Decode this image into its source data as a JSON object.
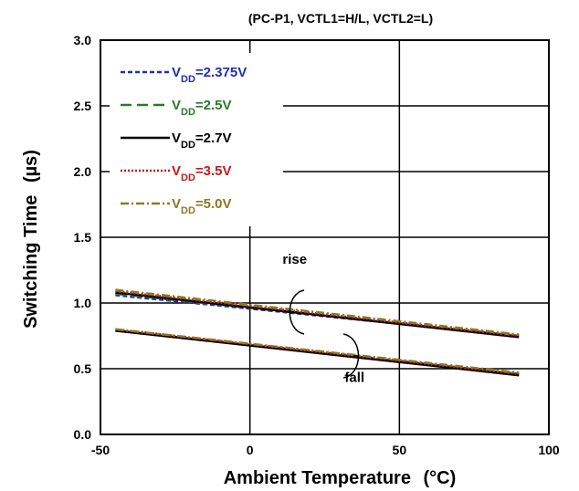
{
  "chart_data": {
    "type": "line",
    "title": "(PC-P1, VCTL1=H/L, VCTL2=L)",
    "xlabel": "Ambient Temperature",
    "xlabel_unit": "(°C)",
    "ylabel": "Switching Time",
    "ylabel_unit": "(µs)",
    "xlim": [
      -50,
      100
    ],
    "ylim": [
      0,
      3
    ],
    "xticks": [
      -50,
      0,
      50,
      100
    ],
    "yticks": [
      0.0,
      0.5,
      1.0,
      1.5,
      2.0,
      2.5,
      3.0
    ],
    "grid": true,
    "legend_position": "top-left",
    "series": [
      {
        "name": "VDD=2.375V",
        "label_main": "V",
        "label_sub": "DD",
        "label_rest": "=2.375V",
        "color": "#1f2fb5",
        "dash": "5,3",
        "rise": {
          "x": [
            -45,
            90
          ],
          "y": [
            1.06,
            0.75
          ]
        },
        "fall": {
          "x": [
            -45,
            90
          ],
          "y": [
            0.79,
            0.46
          ]
        }
      },
      {
        "name": "VDD=2.5V",
        "label_main": "V",
        "label_sub": "DD",
        "label_rest": "=2.5V",
        "color": "#2a7a2a",
        "dash": "12,6",
        "rise": {
          "x": [
            -45,
            90
          ],
          "y": [
            1.07,
            0.75
          ]
        },
        "fall": {
          "x": [
            -45,
            90
          ],
          "y": [
            0.79,
            0.46
          ]
        }
      },
      {
        "name": "VDD=2.7V",
        "label_main": "V",
        "label_sub": "DD",
        "label_rest": "=2.7V",
        "color": "#000000",
        "dash": "",
        "rise": {
          "x": [
            -45,
            90
          ],
          "y": [
            1.08,
            0.74
          ]
        },
        "fall": {
          "x": [
            -45,
            90
          ],
          "y": [
            0.79,
            0.45
          ]
        }
      },
      {
        "name": "VDD=3.5V",
        "label_main": "V",
        "label_sub": "DD",
        "label_rest": "=3.5V",
        "color": "#c41a1a",
        "dash": "2,2",
        "rise": {
          "x": [
            -45,
            90
          ],
          "y": [
            1.09,
            0.75
          ]
        },
        "fall": {
          "x": [
            -45,
            90
          ],
          "y": [
            0.8,
            0.46
          ]
        }
      },
      {
        "name": "VDD=5.0V",
        "label_main": "V",
        "label_sub": "DD",
        "label_rest": "=5.0V",
        "color": "#8a7a22",
        "dash": "9,3,2,3",
        "rise": {
          "x": [
            -45,
            90
          ],
          "y": [
            1.1,
            0.76
          ]
        },
        "fall": {
          "x": [
            -45,
            90
          ],
          "y": [
            0.8,
            0.47
          ]
        }
      }
    ],
    "annotations": [
      {
        "text": "rise",
        "x": 15,
        "y": 1.3
      },
      {
        "text": "fall",
        "x": 35,
        "y": 0.4
      }
    ]
  }
}
